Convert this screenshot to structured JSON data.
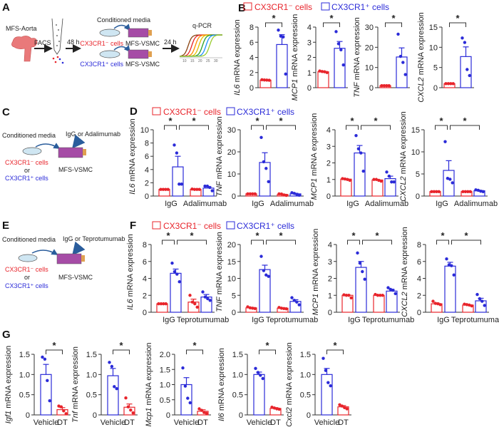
{
  "panel_labels": {
    "a": "A",
    "b": "B",
    "c": "C",
    "d": "D",
    "e": "E",
    "f": "F",
    "g": "G"
  },
  "colors": {
    "neg": "#e8242b",
    "pos": "#2b2bd8",
    "axis": "#333333"
  },
  "legend": {
    "neg": "CX3CR1⁻ cells",
    "pos": "CX3CR1⁺ cells"
  },
  "panel_a": {
    "source": "MFS-Aorta",
    "facs": "FACS",
    "time1": "48 h",
    "conditioned": "Conditioned media",
    "neg_cells": "CX3CR1⁻ cells",
    "pos_cells": "CX3CR1⁺ cells",
    "vsmc": "MFS-VSMC",
    "time2": "24 h",
    "qpcr": "q-PCR",
    "qpcr_ticks": [
      "10",
      "15",
      "20",
      "25",
      "30"
    ]
  },
  "panel_c": {
    "conditioned": "Conditioned media",
    "treatment": "IgG or Adalimumab",
    "neg_cells": "CX3CR1⁻ cells",
    "or": "or",
    "pos_cells": "CX3CR1⁺ cells",
    "vsmc": "MFS-VSMC"
  },
  "panel_e": {
    "conditioned": "Conditioned media",
    "treatment": "IgG or Teprotumumab",
    "neg_cells": "CX3CR1⁻ cells",
    "or": "or",
    "pos_cells": "CX3CR1⁺ cells",
    "vsmc": "MFS-VSMC"
  },
  "chart_data": [
    {
      "type": "bar",
      "panel": "B",
      "gene": "IL6",
      "ylabel": " mRNA expression",
      "ylim": [
        0,
        8
      ],
      "yticks": [
        "0",
        "2",
        "4",
        "6",
        "8"
      ],
      "categories": [],
      "bars": [
        {
          "group": "neg",
          "mean": 1.0,
          "sem": 0.03,
          "points": [
            1.05,
            1.02,
            1.0,
            0.98
          ]
        },
        {
          "group": "pos",
          "mean": 5.7,
          "sem": 1.3,
          "points": [
            7.6,
            6.8,
            6.7,
            1.8
          ]
        }
      ],
      "significance": [
        {
          "from": 0,
          "to": 1,
          "label": "*"
        }
      ]
    },
    {
      "type": "bar",
      "panel": "B",
      "gene": "MCP1",
      "ylabel": " mRNA expression",
      "ylim": [
        0,
        4
      ],
      "yticks": [
        "0",
        "1",
        "2",
        "3",
        "4"
      ],
      "categories": [],
      "bars": [
        {
          "group": "neg",
          "mean": 1.05,
          "sem": 0.02,
          "points": [
            1.1,
            1.07,
            1.05,
            1.0
          ]
        },
        {
          "group": "pos",
          "mean": 2.6,
          "sem": 0.45,
          "points": [
            3.7,
            2.9,
            2.5,
            1.5
          ]
        }
      ],
      "significance": [
        {
          "from": 0,
          "to": 1,
          "label": "*"
        }
      ]
    },
    {
      "type": "bar",
      "panel": "B",
      "gene": "TNF",
      "ylabel": " mRNA expression",
      "ylim": [
        0,
        30
      ],
      "yticks": [
        "0",
        "10",
        "20",
        "30"
      ],
      "categories": [],
      "bars": [
        {
          "group": "neg",
          "mean": 1.0,
          "sem": 0.05,
          "points": [
            1.0,
            1.0,
            1.0,
            1.0
          ]
        },
        {
          "group": "pos",
          "mean": 15.2,
          "sem": 4.5,
          "points": [
            26.5,
            15.5,
            12.5,
            6.5
          ]
        }
      ],
      "significance": [
        {
          "from": 0,
          "to": 1,
          "label": "*"
        }
      ]
    },
    {
      "type": "bar",
      "panel": "B",
      "gene": "CXCL2",
      "ylabel": " mRNA expression",
      "ylim": [
        0,
        15
      ],
      "yticks": [
        "0",
        "5",
        "10",
        "15"
      ],
      "categories": [],
      "bars": [
        {
          "group": "neg",
          "mean": 1.0,
          "sem": 0.05,
          "points": [
            1.0,
            1.0,
            1.0,
            1.0
          ]
        },
        {
          "group": "pos",
          "mean": 7.7,
          "sem": 2.4,
          "points": [
            12.3,
            11.2,
            4.5,
            3.0
          ]
        }
      ],
      "significance": [
        {
          "from": 0,
          "to": 1,
          "label": "*"
        }
      ]
    },
    {
      "type": "bar",
      "panel": "D",
      "gene": "IL6",
      "ylabel": " mRNA expression",
      "ylim": [
        0,
        10
      ],
      "yticks": [
        "0",
        "2",
        "4",
        "6",
        "8",
        "10"
      ],
      "categories": [
        "IgG",
        "Adalimumab"
      ],
      "bars": [
        {
          "group": "neg",
          "mean": 1.0,
          "sem": 0.03,
          "points": [
            1.0,
            1.0,
            1.0,
            1.0
          ]
        },
        {
          "group": "pos",
          "mean": 4.4,
          "sem": 1.6,
          "points": [
            7.7,
            6.5,
            1.8,
            1.8
          ]
        },
        {
          "group": "neg",
          "mean": 1.0,
          "sem": 0.03,
          "points": [
            1.05,
            1.0,
            1.0,
            1.0
          ]
        },
        {
          "group": "pos",
          "mean": 1.2,
          "sem": 0.2,
          "points": [
            1.5,
            1.5,
            1.3,
            0.8
          ]
        }
      ],
      "significance": [
        {
          "from": 0,
          "to": 1,
          "label": "*"
        },
        {
          "from": 1,
          "to": 3,
          "label": "*"
        }
      ]
    },
    {
      "type": "bar",
      "panel": "D",
      "gene": "TNF",
      "ylabel": " mRNA expression",
      "ylim": [
        0,
        30
      ],
      "yticks": [
        "0",
        "10",
        "20",
        "30"
      ],
      "categories": [
        "IgG",
        "Adalimumab"
      ],
      "bars": [
        {
          "group": "neg",
          "mean": 1.0,
          "sem": 0.05,
          "points": [
            1.0,
            1.0,
            1.0,
            1.0
          ]
        },
        {
          "group": "pos",
          "mean": 15.2,
          "sem": 4.4,
          "points": [
            26.5,
            15.5,
            12.5,
            6.5
          ]
        },
        {
          "group": "neg",
          "mean": 0.7,
          "sem": 0.15,
          "points": [
            1.0,
            0.9,
            0.5,
            0.3
          ]
        },
        {
          "group": "pos",
          "mean": 1.0,
          "sem": 0.25,
          "points": [
            1.5,
            1.2,
            0.8,
            0.4
          ]
        }
      ],
      "significance": [
        {
          "from": 0,
          "to": 1,
          "label": "*"
        },
        {
          "from": 1,
          "to": 3,
          "label": "*"
        }
      ]
    },
    {
      "type": "bar",
      "panel": "D",
      "gene": "MCP1",
      "ylabel": " mRNA expression",
      "ylim": [
        0,
        4
      ],
      "yticks": [
        "0",
        "1",
        "2",
        "3",
        "4"
      ],
      "categories": [
        "IgG",
        "Adalimumab"
      ],
      "bars": [
        {
          "group": "neg",
          "mean": 1.02,
          "sem": 0.02,
          "points": [
            1.05,
            1.03,
            1.0,
            0.95
          ]
        },
        {
          "group": "pos",
          "mean": 2.6,
          "sem": 0.45,
          "points": [
            3.65,
            2.85,
            2.6,
            1.5
          ]
        },
        {
          "group": "neg",
          "mean": 0.97,
          "sem": 0.02,
          "points": [
            1.0,
            1.0,
            0.95,
            0.9
          ]
        },
        {
          "group": "pos",
          "mean": 1.05,
          "sem": 0.15,
          "points": [
            1.45,
            1.2,
            0.85,
            0.85
          ]
        }
      ],
      "significance": [
        {
          "from": 0,
          "to": 1,
          "label": "*"
        },
        {
          "from": 1,
          "to": 3,
          "label": "*"
        }
      ]
    },
    {
      "type": "bar",
      "panel": "D",
      "gene": "CXCL2",
      "ylabel": " mRNA expression",
      "ylim": [
        0,
        15
      ],
      "yticks": [
        "0",
        "5",
        "10",
        "15"
      ],
      "categories": [
        "IgG",
        "Adalimumab"
      ],
      "bars": [
        {
          "group": "neg",
          "mean": 1.0,
          "sem": 0.03,
          "points": [
            1.0,
            1.0,
            1.0,
            1.0
          ]
        },
        {
          "group": "pos",
          "mean": 5.8,
          "sem": 2.2,
          "points": [
            12.3,
            4.0,
            3.8,
            3.0
          ]
        },
        {
          "group": "neg",
          "mean": 1.0,
          "sem": 0.03,
          "points": [
            1.0,
            1.0,
            1.0,
            1.0
          ]
        },
        {
          "group": "pos",
          "mean": 1.2,
          "sem": 0.1,
          "points": [
            1.4,
            1.3,
            1.1,
            1.0
          ]
        }
      ],
      "significance": [
        {
          "from": 0,
          "to": 1,
          "label": "*"
        },
        {
          "from": 1,
          "to": 3,
          "label": "*"
        }
      ]
    },
    {
      "type": "bar",
      "panel": "F",
      "gene": "IL6",
      "ylabel": " mRNA expression",
      "ylim": [
        0,
        8
      ],
      "yticks": [
        "0",
        "2",
        "4",
        "6",
        "8"
      ],
      "categories": [
        "IgG",
        "Teprotumumab"
      ],
      "bars": [
        {
          "group": "neg",
          "mean": 1.0,
          "sem": 0.03,
          "points": [
            1.0,
            1.0,
            1.0,
            1.0
          ]
        },
        {
          "group": "pos",
          "mean": 4.6,
          "sem": 0.5,
          "points": [
            5.8,
            4.8,
            4.5,
            3.6
          ]
        },
        {
          "group": "neg",
          "mean": 1.2,
          "sem": 0.35,
          "points": [
            2.0,
            1.2,
            1.0,
            0.6
          ]
        },
        {
          "group": "pos",
          "mean": 1.8,
          "sem": 0.3,
          "points": [
            2.4,
            1.8,
            1.6,
            1.4
          ]
        }
      ],
      "significance": [
        {
          "from": 0,
          "to": 1,
          "label": "*"
        },
        {
          "from": 1,
          "to": 3,
          "label": "*"
        }
      ]
    },
    {
      "type": "bar",
      "panel": "F",
      "gene": "TNF",
      "ylabel": " mRNA expression",
      "ylim": [
        0,
        20
      ],
      "yticks": [
        "0",
        "5",
        "10",
        "15",
        "20"
      ],
      "categories": [
        "IgG",
        "Teprotumumab"
      ],
      "bars": [
        {
          "group": "neg",
          "mean": 1.3,
          "sem": 0.1,
          "points": [
            1.6,
            1.3,
            1.2,
            1.1
          ]
        },
        {
          "group": "pos",
          "mean": 12.6,
          "sem": 1.3,
          "points": [
            16.5,
            12.3,
            11.0,
            10.6
          ]
        },
        {
          "group": "neg",
          "mean": 1.2,
          "sem": 0.1,
          "points": [
            1.4,
            1.2,
            1.1,
            1.0
          ]
        },
        {
          "group": "pos",
          "mean": 3.2,
          "sem": 0.5,
          "points": [
            4.3,
            3.5,
            3.0,
            2.2
          ]
        }
      ],
      "significance": [
        {
          "from": 0,
          "to": 1,
          "label": "*"
        },
        {
          "from": 1,
          "to": 3,
          "label": "*"
        }
      ]
    },
    {
      "type": "bar",
      "panel": "F",
      "gene": "MCP1",
      "ylabel": " mRNA expression",
      "ylim": [
        0,
        4
      ],
      "yticks": [
        "0",
        "1",
        "2",
        "3",
        "4"
      ],
      "categories": [
        "IgG",
        "Teprotumumab"
      ],
      "bars": [
        {
          "group": "neg",
          "mean": 1.0,
          "sem": 0.04,
          "points": [
            1.03,
            1.0,
            1.0,
            0.85
          ]
        },
        {
          "group": "pos",
          "mean": 2.65,
          "sem": 0.35,
          "points": [
            3.5,
            2.9,
            2.4,
            1.95
          ]
        },
        {
          "group": "neg",
          "mean": 1.0,
          "sem": 0.02,
          "points": [
            1.05,
            1.0,
            1.0,
            1.0
          ]
        },
        {
          "group": "pos",
          "mean": 1.25,
          "sem": 0.1,
          "points": [
            1.45,
            1.35,
            1.3,
            1.1
          ]
        }
      ],
      "significance": [
        {
          "from": 0,
          "to": 1,
          "label": "*"
        },
        {
          "from": 1,
          "to": 3,
          "label": "*"
        }
      ]
    },
    {
      "type": "bar",
      "panel": "F",
      "gene": "CXCL2",
      "ylabel": " mRNA expression",
      "ylim": [
        0,
        8
      ],
      "yticks": [
        "0",
        "2",
        "4",
        "6",
        "8"
      ],
      "categories": [
        "IgG",
        "Teprotumumab"
      ],
      "bars": [
        {
          "group": "neg",
          "mean": 1.0,
          "sem": 0.1,
          "points": [
            1.3,
            1.05,
            1.0,
            0.9
          ]
        },
        {
          "group": "pos",
          "mean": 5.45,
          "sem": 0.45,
          "points": [
            6.3,
            5.6,
            5.5,
            4.4
          ]
        },
        {
          "group": "neg",
          "mean": 0.85,
          "sem": 0.04,
          "points": [
            0.95,
            0.9,
            0.85,
            0.75
          ]
        },
        {
          "group": "pos",
          "mean": 1.35,
          "sem": 0.3,
          "points": [
            2.1,
            1.6,
            1.3,
            0.8
          ]
        }
      ],
      "significance": [
        {
          "from": 0,
          "to": 1,
          "label": "*"
        },
        {
          "from": 1,
          "to": 3,
          "label": "*"
        }
      ]
    },
    {
      "type": "bar",
      "panel": "G",
      "gene": "Igf1",
      "ylabel": " mRNA expression",
      "ylim": [
        0,
        1.5
      ],
      "yticks": [
        "0",
        "0.5",
        "1.0",
        "1.5"
      ],
      "categories": [
        "Vehicle",
        "DT"
      ],
      "bars": [
        {
          "group": "pos",
          "mean": 1.0,
          "sem": 0.25,
          "points": [
            1.43,
            1.38,
            0.85,
            0.35
          ]
        },
        {
          "group": "neg",
          "mean": 0.13,
          "sem": 0.05,
          "points": [
            0.22,
            0.2,
            0.1,
            0.03
          ]
        }
      ],
      "significance": [
        {
          "from": 0,
          "to": 1,
          "label": "*"
        }
      ]
    },
    {
      "type": "bar",
      "panel": "G",
      "gene": "Tnf",
      "ylabel": " mRNA expression",
      "ylim": [
        0,
        1.5
      ],
      "yticks": [
        "0",
        "0.5",
        "1.0",
        "1.5"
      ],
      "categories": [
        "Vehicle",
        "DT"
      ],
      "bars": [
        {
          "group": "pos",
          "mean": 0.97,
          "sem": 0.18,
          "points": [
            1.3,
            1.2,
            0.7,
            0.65
          ]
        },
        {
          "group": "neg",
          "mean": 0.19,
          "sem": 0.08,
          "points": [
            0.42,
            0.2,
            0.12,
            0.05
          ]
        }
      ],
      "significance": [
        {
          "from": 0,
          "to": 1,
          "label": "*"
        }
      ]
    },
    {
      "type": "bar",
      "panel": "G",
      "gene": "Mcp1",
      "ylabel": " mRNA expression",
      "ylim": [
        0,
        2.0
      ],
      "yticks": [
        "0",
        "0.5",
        "1.0",
        "1.5",
        "2.0"
      ],
      "categories": [
        "Vehicle",
        "DT"
      ],
      "bars": [
        {
          "group": "pos",
          "mean": 1.0,
          "sem": 0.23,
          "points": [
            1.55,
            0.95,
            0.55,
            0.4
          ]
        },
        {
          "group": "neg",
          "mean": 0.12,
          "sem": 0.05,
          "points": [
            0.2,
            0.15,
            0.08,
            0.05
          ]
        }
      ],
      "significance": [
        {
          "from": 0,
          "to": 1,
          "label": "*"
        }
      ]
    },
    {
      "type": "bar",
      "panel": "G",
      "gene": "Il6",
      "ylabel": " mRNA expression",
      "ylim": [
        0,
        1.5
      ],
      "yticks": [
        "0",
        "0.5",
        "1.0",
        "1.5"
      ],
      "categories": [
        "Vehicle",
        "DT"
      ],
      "bars": [
        {
          "group": "pos",
          "mean": 1.0,
          "sem": 0.06,
          "points": [
            1.15,
            1.05,
            0.98,
            0.9
          ]
        },
        {
          "group": "neg",
          "mean": 0.16,
          "sem": 0.02,
          "points": [
            0.19,
            0.17,
            0.15,
            0.14
          ]
        }
      ],
      "significance": [
        {
          "from": 0,
          "to": 1,
          "label": "*"
        }
      ]
    },
    {
      "type": "bar",
      "panel": "G",
      "gene": "Cxcl2",
      "ylabel": " mRNA expression",
      "ylim": [
        0,
        1.5
      ],
      "yticks": [
        "0",
        "0.5",
        "1.0",
        "1.5"
      ],
      "categories": [
        "Vehicle",
        "DT"
      ],
      "bars": [
        {
          "group": "pos",
          "mean": 1.0,
          "sem": 0.15,
          "points": [
            1.4,
            1.1,
            0.8,
            0.72
          ]
        },
        {
          "group": "neg",
          "mean": 0.2,
          "sem": 0.03,
          "points": [
            0.25,
            0.22,
            0.18,
            0.15
          ]
        }
      ],
      "significance": [
        {
          "from": 0,
          "to": 1,
          "label": "*"
        }
      ]
    }
  ]
}
